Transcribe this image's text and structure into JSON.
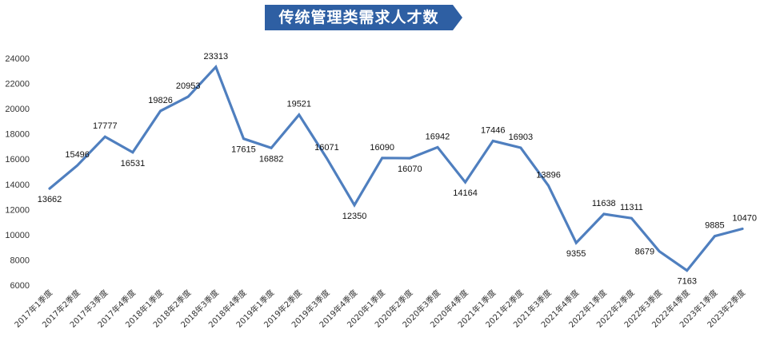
{
  "chart_data": {
    "type": "line",
    "title": "传统管理类需求人才数",
    "categories": [
      "2017年1季度",
      "2017年2季度",
      "2017年3季度",
      "2017年4季度",
      "2018年1季度",
      "2018年2季度",
      "2018年3季度",
      "2018年4季度",
      "2019年1季度",
      "2019年2季度",
      "2019年3季度",
      "2019年4季度",
      "2020年1季度",
      "2020年2季度",
      "2020年3季度",
      "2020年4季度",
      "2021年1季度",
      "2021年2季度",
      "2021年3季度",
      "2021年4季度",
      "2022年1季度",
      "2022年2季度",
      "2022年3季度",
      "2022年4季度",
      "2023年1季度",
      "2023年2季度"
    ],
    "series": [
      {
        "values": [
          13662,
          15496,
          17777,
          16531,
          19826,
          20953,
          23313,
          17615,
          16882,
          19521,
          16071,
          12350,
          16090,
          16070,
          16942,
          14164,
          17446,
          16903,
          13896,
          9355,
          11638,
          11311,
          8679,
          7163,
          9885,
          10470
        ]
      }
    ],
    "ylim": [
      6000,
      24000
    ],
    "yticks": [
      6000,
      8000,
      10000,
      12000,
      14000,
      16000,
      18000,
      20000,
      22000,
      24000
    ],
    "label_positions": [
      "below",
      "above",
      "above",
      "below",
      "above",
      "above",
      "above",
      "below",
      "below",
      "above",
      "above",
      "below",
      "above",
      "below",
      "above",
      "below",
      "above",
      "above",
      "above",
      "below",
      "above",
      "above",
      "left",
      "below",
      "above",
      "above"
    ],
    "grid": false,
    "legend": "none",
    "colors": {
      "line": "#4f7fbf",
      "banner": "#2e5fa3"
    }
  }
}
